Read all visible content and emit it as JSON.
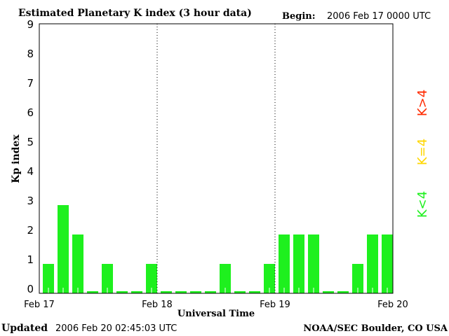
{
  "chart_data": {
    "type": "bar",
    "title": "Estimated Planetary K index (3 hour data)",
    "begin_label": "Begin:",
    "begin_value": "2006 Feb 17 0000 UTC",
    "xlabel": "Universal Time",
    "ylabel": "Kp index",
    "ylim": [
      0,
      9
    ],
    "yticks": [
      "0",
      "1",
      "2",
      "3",
      "4",
      "5",
      "6",
      "7",
      "8",
      "9"
    ],
    "xticks": [
      "Feb 17",
      "Feb 18",
      "Feb 19",
      "Feb 20"
    ],
    "values": [
      1,
      3,
      2,
      0,
      1,
      0,
      0,
      1,
      0,
      0,
      0,
      0,
      1,
      0,
      0,
      1,
      2,
      2,
      2,
      0,
      0,
      1,
      2,
      2
    ],
    "colors": {
      "low": "#1ef01e",
      "mid": "#ffd700",
      "high": "#ff2a00"
    },
    "legend": [
      {
        "label": "K>4",
        "color": "#ff2a00"
      },
      {
        "label": "K=4",
        "color": "#ffd700"
      },
      {
        "label": "K<4",
        "color": "#1ef01e"
      }
    ],
    "legend_position": "right"
  },
  "footer": {
    "updated_label": "Updated",
    "updated_value": "2006 Feb 20 02:45:03 UTC",
    "source": "NOAA/SEC Boulder, CO USA"
  }
}
